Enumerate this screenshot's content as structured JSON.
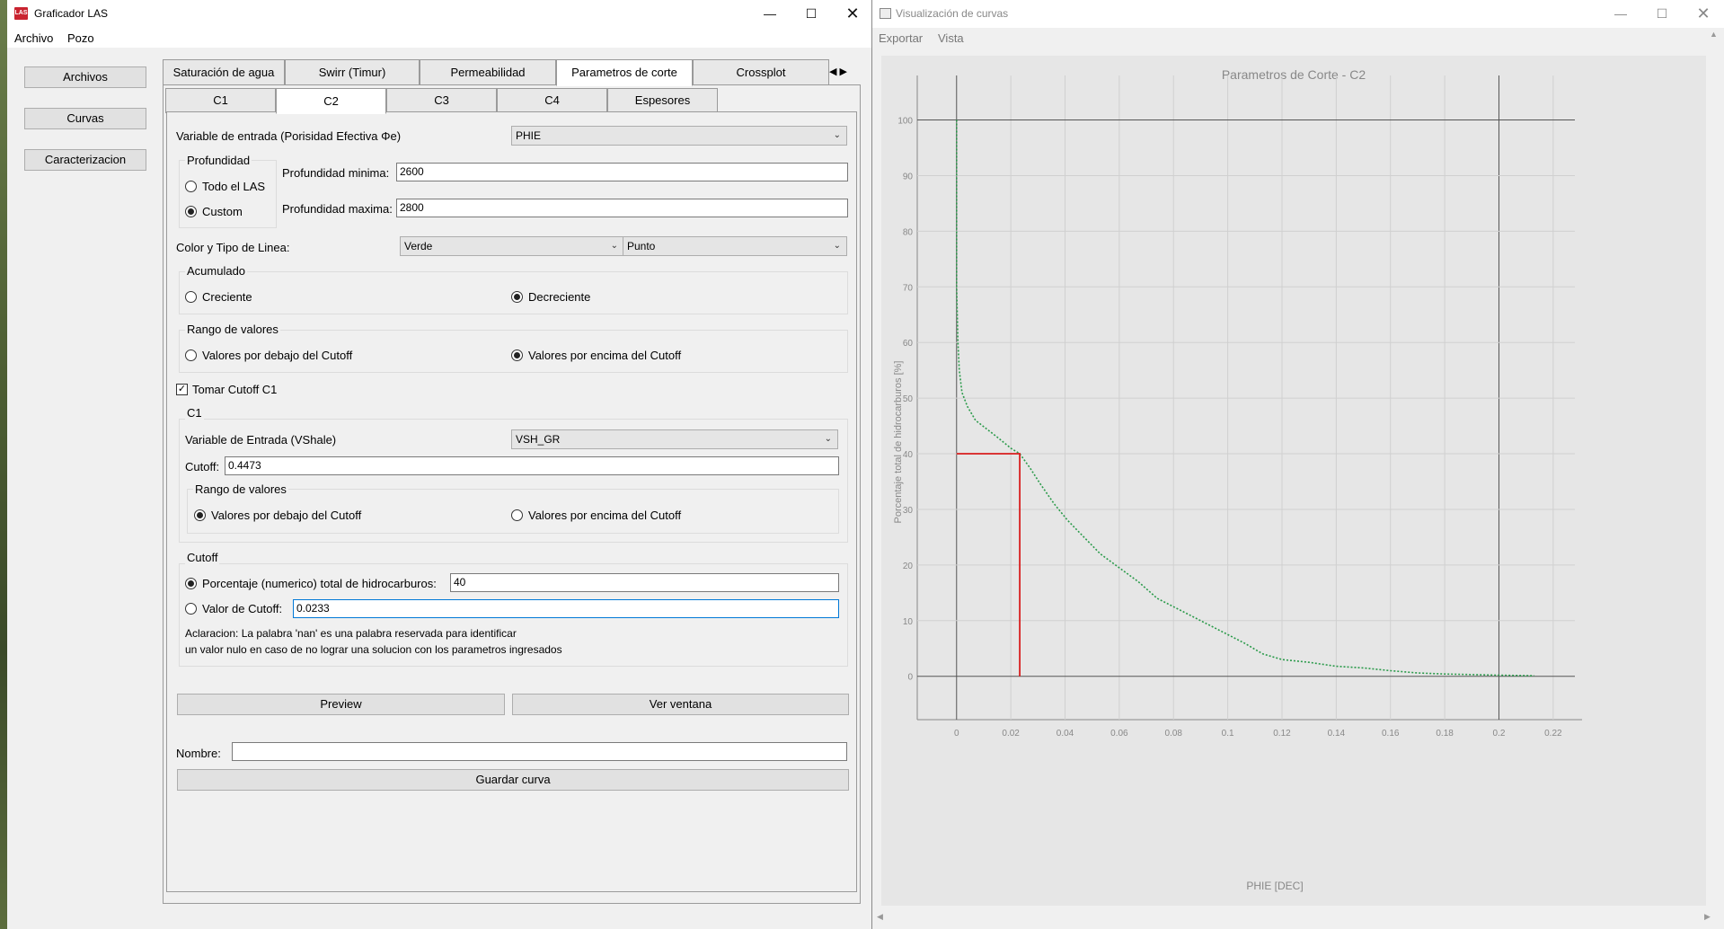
{
  "left_window": {
    "title": "Graficador LAS",
    "app_icon_text": "LAS",
    "menu": [
      "Archivo",
      "Pozo"
    ],
    "side_buttons": [
      "Archivos",
      "Curvas",
      "Caracterizacion"
    ],
    "main_tabs": [
      "Saturación de agua",
      "Swirr (Timur)",
      "Permeabilidad",
      "Parametros de corte",
      "Crossplot"
    ],
    "active_main_tab": "Parametros de corte",
    "sub_tabs": [
      "C1",
      "C2",
      "C3",
      "C4",
      "Espesores"
    ],
    "active_sub_tab": "C2",
    "form": {
      "variable_label": "Variable de entrada (Porisidad Efectiva Φe)",
      "variable_value": "PHIE",
      "profundidad_title": "Profundidad",
      "todo_el_las": "Todo el LAS",
      "custom": "Custom",
      "prof_min_label": "Profundidad minima:",
      "prof_min_value": "2600",
      "prof_max_label": "Profundidad maxima:",
      "prof_max_value": "2800",
      "color_label": "Color y Tipo de Linea:",
      "color_value": "Verde",
      "line_value": "Punto",
      "acumulado_title": "Acumulado",
      "creciente": "Creciente",
      "decreciente": "Decreciente",
      "rango_title": "Rango de valores",
      "debajo": "Valores por debajo del Cutoff",
      "encima": "Valores por encima del Cutoff",
      "tomar_cutoff": "Tomar Cutoff C1",
      "c1_title": "C1",
      "vshale_label": "Variable de Entrada (VShale)",
      "vshale_value": "VSH_GR",
      "cutoff_label": "Cutoff:",
      "cutoff_value": "0.4473",
      "c1_rango_title": "Rango de valores",
      "cutoff_title": "Cutoff",
      "porcentaje_label": "Porcentaje (numerico) total de hidrocarburos:",
      "porcentaje_value": "40",
      "valor_cutoff_label": "Valor de Cutoff:",
      "valor_cutoff_value": "0.0233",
      "aclaracion_1": "Aclaracion: La palabra 'nan' es una palabra reservada para identificar",
      "aclaracion_2": "un valor nulo en caso de no lograr una solucion con los parametros ingresados",
      "preview": "Preview",
      "ver_ventana": "Ver ventana",
      "nombre_label": "Nombre:",
      "nombre_value": "",
      "guardar": "Guardar curva"
    }
  },
  "right_window": {
    "title": "Visualización de curvas",
    "menu": [
      "Exportar",
      "Vista"
    ]
  },
  "chart_data": {
    "type": "line",
    "title": "Parametros de Corte - C2",
    "xlabel": "PHIE [DEC]",
    "ylabel": "Porcentaje total de hidrocarburos [%]",
    "xlim": [
      -0.0145,
      0.228
    ],
    "ylim": [
      -7.8,
      108
    ],
    "xticks": [
      0,
      0.02,
      0.04,
      0.06,
      0.08,
      0.1,
      0.12,
      0.14,
      0.16,
      0.18,
      0.2,
      0.22
    ],
    "xtick_labels": [
      "0",
      "0.02",
      "0.04",
      "0.06",
      "0.08",
      "0.1",
      "0.12",
      "0.14",
      "0.16",
      "0.18",
      "0.2",
      "0.22"
    ],
    "yticks": [
      0,
      10,
      20,
      30,
      40,
      50,
      60,
      70,
      80,
      90,
      100
    ],
    "grid": true,
    "series": [
      {
        "color": "#2a9a4a",
        "style": "dotted",
        "x": [
          0,
          0,
          0.0005,
          0.001,
          0.002,
          0.004,
          0.007,
          0.011,
          0.015,
          0.02,
          0.0233,
          0.027,
          0.031,
          0.036,
          0.041,
          0.047,
          0.053,
          0.06,
          0.067,
          0.074,
          0.082,
          0.09,
          0.098,
          0.106,
          0.113,
          0.12,
          0.13,
          0.14,
          0.15,
          0.16,
          0.17,
          0.18,
          0.19,
          0.2,
          0.213
        ],
        "y": [
          100,
          70,
          60,
          55,
          51,
          48.5,
          46,
          44.5,
          43,
          41,
          40,
          37.5,
          34.5,
          31,
          28,
          25,
          22,
          19.5,
          17,
          14,
          12,
          10,
          8,
          6,
          4,
          3,
          2.5,
          1.8,
          1.5,
          1,
          0.6,
          0.4,
          0.3,
          0.2,
          0.1
        ]
      },
      {
        "color": "#d81e1e",
        "style": "solid",
        "x": [
          0,
          0.0233,
          0.0233
        ],
        "y": [
          40,
          40,
          0
        ]
      }
    ],
    "reference_lines": {
      "x": [
        0,
        0.2
      ],
      "y": [
        0,
        100
      ],
      "color": "#555555"
    }
  }
}
